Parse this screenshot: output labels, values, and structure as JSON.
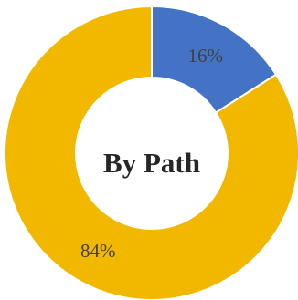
{
  "chart_data": {
    "type": "pie",
    "donut": true,
    "center_label": "By Path",
    "slices": [
      {
        "value": 16,
        "label": "16%",
        "color": "#4472C4"
      },
      {
        "value": 84,
        "label": "84%",
        "color": "#F2B800"
      }
    ],
    "legend": "none"
  }
}
